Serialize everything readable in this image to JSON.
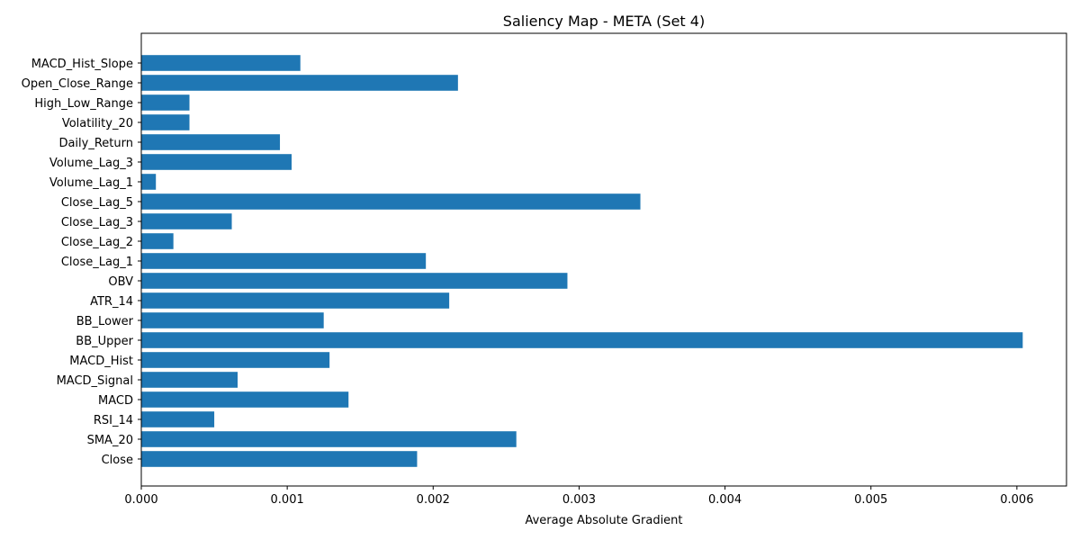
{
  "chart_data": {
    "type": "bar",
    "orientation": "horizontal",
    "title": "Saliency Map - META (Set 4)",
    "xlabel": "Average Absolute Gradient",
    "ylabel": "",
    "xlim": [
      0,
      0.00634
    ],
    "xticks": [
      0,
      0.001,
      0.002,
      0.003,
      0.004,
      0.005,
      0.006
    ],
    "xtick_labels": [
      "0.000",
      "0.001",
      "0.002",
      "0.003",
      "0.004",
      "0.005",
      "0.006"
    ],
    "grid": false,
    "legend": "none",
    "bar_color": "#1f77b4",
    "categories": [
      "Close",
      "SMA_20",
      "RSI_14",
      "MACD",
      "MACD_Signal",
      "MACD_Hist",
      "BB_Upper",
      "BB_Lower",
      "ATR_14",
      "OBV",
      "Close_Lag_1",
      "Close_Lag_2",
      "Close_Lag_3",
      "Close_Lag_5",
      "Volume_Lag_1",
      "Volume_Lag_3",
      "Daily_Return",
      "Volatility_20",
      "High_Low_Range",
      "Open_Close_Range",
      "MACD_Hist_Slope"
    ],
    "values": [
      0.00189,
      0.00257,
      0.0005,
      0.00142,
      0.00066,
      0.00129,
      0.00604,
      0.00125,
      0.00211,
      0.00292,
      0.00195,
      0.00022,
      0.00062,
      0.00342,
      0.0001,
      0.00103,
      0.00095,
      0.00033,
      0.00033,
      0.00217,
      0.00109
    ]
  }
}
